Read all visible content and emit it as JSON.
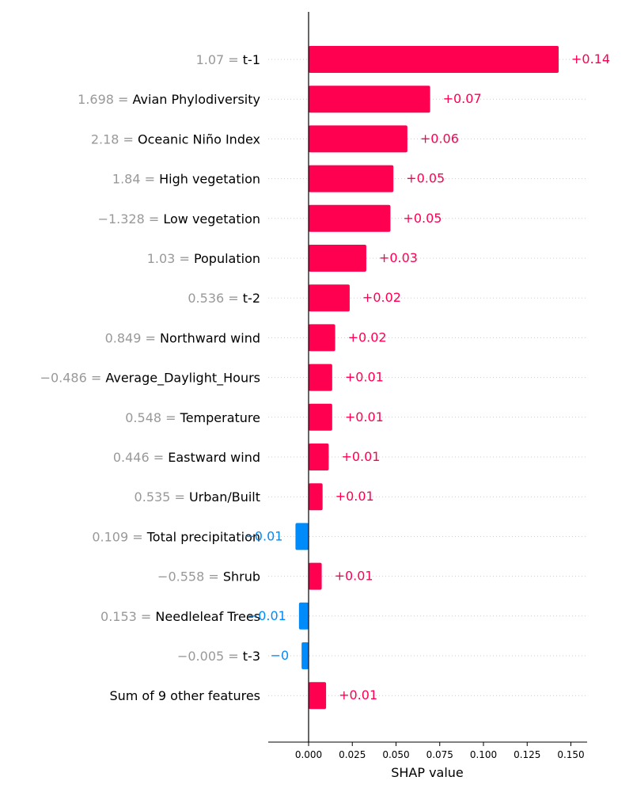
{
  "chart_data": {
    "type": "bar",
    "orientation": "horizontal",
    "xlabel": "SHAP value",
    "xlim": [
      -0.0235,
      0.1585
    ],
    "xticks": [
      "0.000",
      "0.025",
      "0.050",
      "0.075",
      "0.100",
      "0.125",
      "0.150"
    ],
    "xtick_values": [
      0,
      0.025,
      0.05,
      0.075,
      0.1,
      0.125,
      0.15
    ],
    "grid": "dotted horizontal row lines",
    "colors": {
      "positive": "#ff0051",
      "negative": "#008bfb",
      "feature_value": "#999999",
      "feature_name": "#000000"
    },
    "rows": [
      {
        "value_text": "1.07",
        "name": "t-1",
        "shap": 0.143,
        "label": "+0.14"
      },
      {
        "value_text": "1.698",
        "name": "Avian Phylodiversity",
        "shap": 0.0695,
        "label": "+0.07"
      },
      {
        "value_text": "2.18",
        "name": "Oceanic Niño Index",
        "shap": 0.0565,
        "label": "+0.06"
      },
      {
        "value_text": "1.84",
        "name": "High vegetation",
        "shap": 0.0485,
        "label": "+0.05"
      },
      {
        "value_text": "−1.328",
        "name": "Low vegetation",
        "shap": 0.0468,
        "label": "+0.05"
      },
      {
        "value_text": "1.03",
        "name": "Population",
        "shap": 0.033,
        "label": "+0.03"
      },
      {
        "value_text": "0.536",
        "name": "t-2",
        "shap": 0.0235,
        "label": "+0.02"
      },
      {
        "value_text": "0.849",
        "name": "Northward wind",
        "shap": 0.0152,
        "label": "+0.02"
      },
      {
        "value_text": "−0.486",
        "name": "Average_Daylight_Hours",
        "shap": 0.0135,
        "label": "+0.01"
      },
      {
        "value_text": "0.548",
        "name": "Temperature",
        "shap": 0.0135,
        "label": "+0.01"
      },
      {
        "value_text": "0.446",
        "name": "Eastward wind",
        "shap": 0.0115,
        "label": "+0.01"
      },
      {
        "value_text": "0.535",
        "name": "Urban/Built",
        "shap": 0.008,
        "label": "+0.01"
      },
      {
        "value_text": "0.109",
        "name": "Total precipitation",
        "shap": -0.0075,
        "label": "−0.01"
      },
      {
        "value_text": "−0.558",
        "name": "Shrub",
        "shap": 0.0075,
        "label": "+0.01"
      },
      {
        "value_text": "0.153",
        "name": "Needleleaf Trees",
        "shap": -0.0055,
        "label": "−0.01"
      },
      {
        "value_text": "−0.005",
        "name": "t-3",
        "shap": -0.004,
        "label": "−0"
      },
      {
        "value_text": "",
        "name": "Sum of 9 other features",
        "shap": 0.01,
        "label": "+0.01"
      }
    ]
  }
}
